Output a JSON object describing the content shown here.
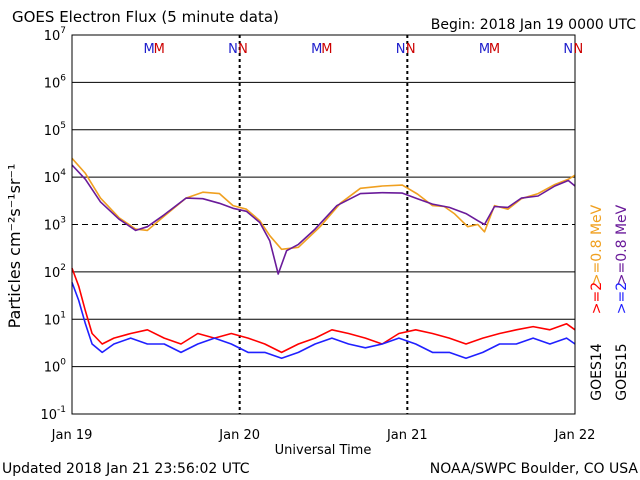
{
  "chart_data": {
    "type": "line",
    "title": "GOES Electron Flux (5 minute data)",
    "begin_label": "Begin: 2018 Jan 19 0000 UTC",
    "xlabel": "Universal Time",
    "ylabel": "Particles cm⁻²s⁻¹sr⁻¹",
    "x_range_days": [
      0,
      3
    ],
    "x_ticks": [
      {
        "day": 0,
        "label": "Jan 19"
      },
      {
        "day": 1,
        "label": "Jan 20"
      },
      {
        "day": 2,
        "label": "Jan 21"
      },
      {
        "day": 3,
        "label": "Jan 22"
      }
    ],
    "y_scale": "log",
    "ylim": [
      0.1,
      10000000
    ],
    "y_ticks": [
      {
        "base": "10",
        "exp": "-1",
        "value": 0.1
      },
      {
        "base": "10",
        "exp": "0",
        "value": 1
      },
      {
        "base": "10",
        "exp": "1",
        "value": 10
      },
      {
        "base": "10",
        "exp": "2",
        "value": 100
      },
      {
        "base": "10",
        "exp": "3",
        "value": 1000
      },
      {
        "base": "10",
        "exp": "4",
        "value": 10000
      },
      {
        "base": "10",
        "exp": "5",
        "value": 100000
      },
      {
        "base": "10",
        "exp": "6",
        "value": 1000000
      },
      {
        "base": "10",
        "exp": "7",
        "value": 10000000
      }
    ],
    "threshold_line": 1000,
    "legend_right": [
      {
        "text": ">=0.8 MeV",
        "color": "#f0a020"
      },
      {
        "text": ">=0.8 MeV",
        "color": "#6a1b9a"
      },
      {
        "text": ">=2",
        "color": "#ff0000"
      },
      {
        "text": ">=2",
        "color": "#2020ff"
      },
      {
        "text": "GOES14",
        "color": "#000000"
      },
      {
        "text": "GOES15",
        "color": "#000000"
      }
    ],
    "markers": [
      {
        "letter": "M",
        "day": 0.46,
        "color": "#2020cc"
      },
      {
        "letter": "M",
        "day": 0.52,
        "color": "#cc0000"
      },
      {
        "letter": "N",
        "day": 0.96,
        "color": "#2020cc"
      },
      {
        "letter": "N",
        "day": 1.02,
        "color": "#cc0000"
      },
      {
        "letter": "M",
        "day": 1.46,
        "color": "#2020cc"
      },
      {
        "letter": "M",
        "day": 1.52,
        "color": "#cc0000"
      },
      {
        "letter": "N",
        "day": 1.96,
        "color": "#2020cc"
      },
      {
        "letter": "N",
        "day": 2.02,
        "color": "#cc0000"
      },
      {
        "letter": "M",
        "day": 2.46,
        "color": "#2020cc"
      },
      {
        "letter": "M",
        "day": 2.52,
        "color": "#cc0000"
      },
      {
        "letter": "N",
        "day": 2.96,
        "color": "#2020cc"
      },
      {
        "letter": "N",
        "day": 3.02,
        "color": "#cc0000"
      }
    ],
    "series": [
      {
        "name": "GOES14 >=0.8 MeV",
        "color": "#f0a020",
        "points": [
          [
            0,
            25000
          ],
          [
            0.08,
            12000
          ],
          [
            0.17,
            3600
          ],
          [
            0.28,
            1400
          ],
          [
            0.38,
            800
          ],
          [
            0.45,
            750
          ],
          [
            0.55,
            1500
          ],
          [
            0.68,
            3600
          ],
          [
            0.78,
            4800
          ],
          [
            0.88,
            4500
          ],
          [
            0.96,
            2500
          ],
          [
            1.04,
            2100
          ],
          [
            1.12,
            1200
          ],
          [
            1.18,
            580
          ],
          [
            1.25,
            300
          ],
          [
            1.35,
            330
          ],
          [
            1.48,
            900
          ],
          [
            1.6,
            2800
          ],
          [
            1.72,
            5800
          ],
          [
            1.85,
            6500
          ],
          [
            1.97,
            6800
          ],
          [
            2.06,
            4400
          ],
          [
            2.15,
            2500
          ],
          [
            2.22,
            2400
          ],
          [
            2.28,
            1700
          ],
          [
            2.36,
            900
          ],
          [
            2.42,
            1000
          ],
          [
            2.46,
            700
          ],
          [
            2.52,
            2500
          ],
          [
            2.6,
            2100
          ],
          [
            2.68,
            3500
          ],
          [
            2.78,
            4500
          ],
          [
            2.88,
            7000
          ],
          [
            2.96,
            9000
          ],
          [
            3.0,
            11000
          ]
        ]
      },
      {
        "name": "GOES15 >=0.8 MeV",
        "color": "#6a1b9a",
        "points": [
          [
            0,
            18000
          ],
          [
            0.08,
            9000
          ],
          [
            0.17,
            3000
          ],
          [
            0.28,
            1300
          ],
          [
            0.38,
            750
          ],
          [
            0.45,
            900
          ],
          [
            0.55,
            1600
          ],
          [
            0.68,
            3600
          ],
          [
            0.78,
            3500
          ],
          [
            0.88,
            2800
          ],
          [
            0.96,
            2200
          ],
          [
            1.04,
            1900
          ],
          [
            1.12,
            1100
          ],
          [
            1.18,
            450
          ],
          [
            1.23,
            90
          ],
          [
            1.28,
            280
          ],
          [
            1.35,
            380
          ],
          [
            1.45,
            800
          ],
          [
            1.58,
            2500
          ],
          [
            1.72,
            4500
          ],
          [
            1.85,
            4700
          ],
          [
            1.97,
            4600
          ],
          [
            2.06,
            3500
          ],
          [
            2.15,
            2700
          ],
          [
            2.25,
            2300
          ],
          [
            2.35,
            1700
          ],
          [
            2.42,
            1200
          ],
          [
            2.46,
            1000
          ],
          [
            2.52,
            2400
          ],
          [
            2.6,
            2300
          ],
          [
            2.68,
            3600
          ],
          [
            2.78,
            4000
          ],
          [
            2.88,
            6500
          ],
          [
            2.96,
            8500
          ],
          [
            3.0,
            6500
          ]
        ]
      },
      {
        "name": "GOES14 >=2",
        "color": "#ff0000",
        "points": [
          [
            0,
            120
          ],
          [
            0.04,
            50
          ],
          [
            0.08,
            15
          ],
          [
            0.12,
            5
          ],
          [
            0.18,
            3
          ],
          [
            0.25,
            4
          ],
          [
            0.35,
            5
          ],
          [
            0.45,
            6
          ],
          [
            0.55,
            4
          ],
          [
            0.65,
            3
          ],
          [
            0.75,
            5
          ],
          [
            0.85,
            4
          ],
          [
            0.95,
            5
          ],
          [
            1.05,
            4
          ],
          [
            1.15,
            3
          ],
          [
            1.25,
            2
          ],
          [
            1.35,
            3
          ],
          [
            1.45,
            4
          ],
          [
            1.55,
            6
          ],
          [
            1.65,
            5
          ],
          [
            1.75,
            4
          ],
          [
            1.85,
            3
          ],
          [
            1.95,
            5
          ],
          [
            2.05,
            6
          ],
          [
            2.15,
            5
          ],
          [
            2.25,
            4
          ],
          [
            2.35,
            3
          ],
          [
            2.45,
            4
          ],
          [
            2.55,
            5
          ],
          [
            2.65,
            6
          ],
          [
            2.75,
            7
          ],
          [
            2.85,
            6
          ],
          [
            2.95,
            8
          ],
          [
            3.0,
            6
          ]
        ]
      },
      {
        "name": "GOES15 >=2",
        "color": "#2020ff",
        "points": [
          [
            0,
            60
          ],
          [
            0.04,
            25
          ],
          [
            0.08,
            8
          ],
          [
            0.12,
            3
          ],
          [
            0.18,
            2
          ],
          [
            0.25,
            3
          ],
          [
            0.35,
            4
          ],
          [
            0.45,
            3
          ],
          [
            0.55,
            3
          ],
          [
            0.65,
            2
          ],
          [
            0.75,
            3
          ],
          [
            0.85,
            4
          ],
          [
            0.95,
            3
          ],
          [
            1.05,
            2
          ],
          [
            1.15,
            2
          ],
          [
            1.25,
            1.5
          ],
          [
            1.35,
            2
          ],
          [
            1.45,
            3
          ],
          [
            1.55,
            4
          ],
          [
            1.65,
            3
          ],
          [
            1.75,
            2.5
          ],
          [
            1.85,
            3
          ],
          [
            1.95,
            4
          ],
          [
            2.05,
            3
          ],
          [
            2.15,
            2
          ],
          [
            2.25,
            2
          ],
          [
            2.35,
            1.5
          ],
          [
            2.45,
            2
          ],
          [
            2.55,
            3
          ],
          [
            2.65,
            3
          ],
          [
            2.75,
            4
          ],
          [
            2.85,
            3
          ],
          [
            2.95,
            4
          ],
          [
            3.0,
            3
          ]
        ]
      }
    ]
  },
  "footer": {
    "updated": "Updated 2018 Jan 21 23:56:02 UTC",
    "source": "NOAA/SWPC Boulder, CO USA"
  }
}
